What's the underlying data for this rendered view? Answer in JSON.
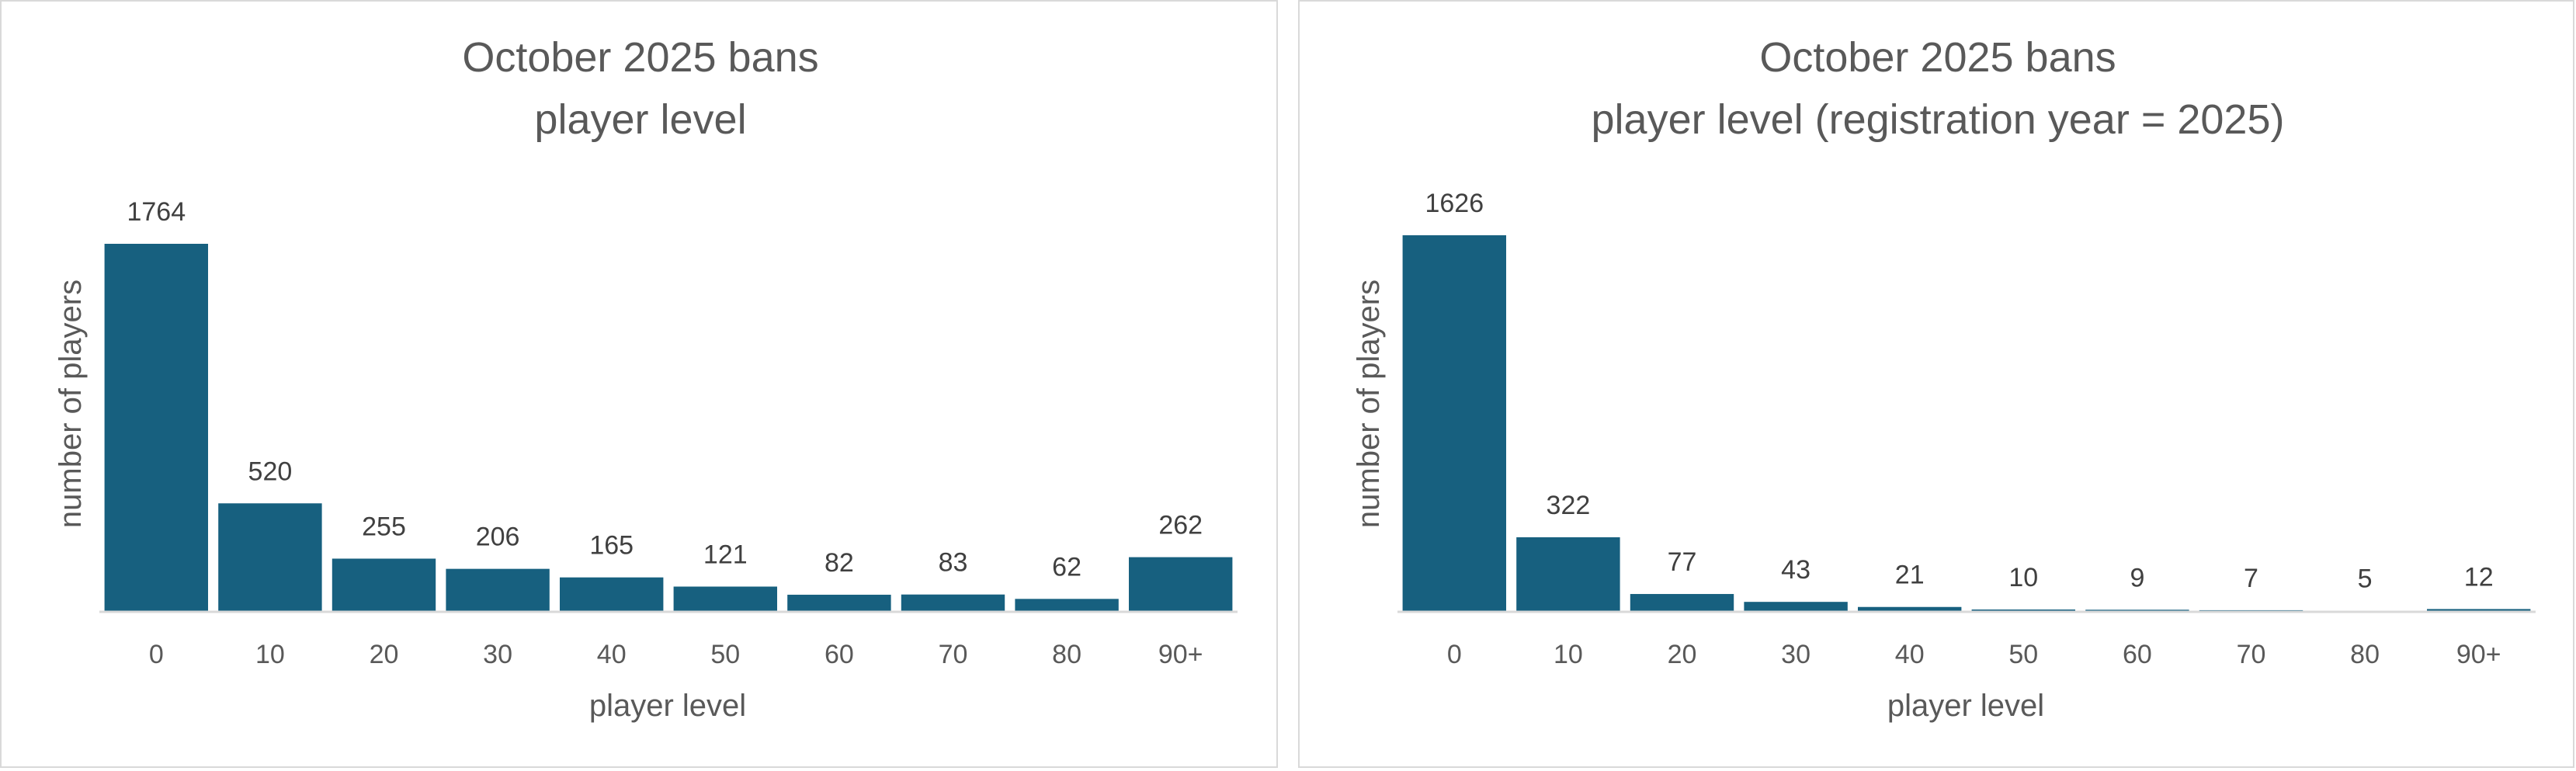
{
  "colors": {
    "bar": "#17607f",
    "axis": "#d9d9d9",
    "text": "#595959",
    "background": "#ffffff",
    "frame": "#d9d9d9"
  },
  "chart_data": [
    {
      "type": "bar",
      "title": "October 2025 bans",
      "subtitle": "player level",
      "xlabel": "player level",
      "ylabel": "number of players",
      "categories": [
        "0",
        "10",
        "20",
        "30",
        "40",
        "50",
        "60",
        "70",
        "80",
        "90+"
      ],
      "values": [
        1764,
        520,
        255,
        206,
        165,
        121,
        82,
        83,
        62,
        262
      ],
      "ylim": [
        0,
        1764
      ],
      "grid": false,
      "legend": "none",
      "data_labels": true
    },
    {
      "type": "bar",
      "title": "October 2025 bans",
      "subtitle": "player level (registration year = 2025)",
      "xlabel": "player level",
      "ylabel": "number of players",
      "categories": [
        "0",
        "10",
        "20",
        "30",
        "40",
        "50",
        "60",
        "70",
        "80",
        "90+"
      ],
      "values": [
        1626,
        322,
        77,
        43,
        21,
        10,
        9,
        7,
        5,
        12
      ],
      "ylim": [
        0,
        1626
      ],
      "grid": false,
      "legend": "none",
      "data_labels": true
    }
  ]
}
